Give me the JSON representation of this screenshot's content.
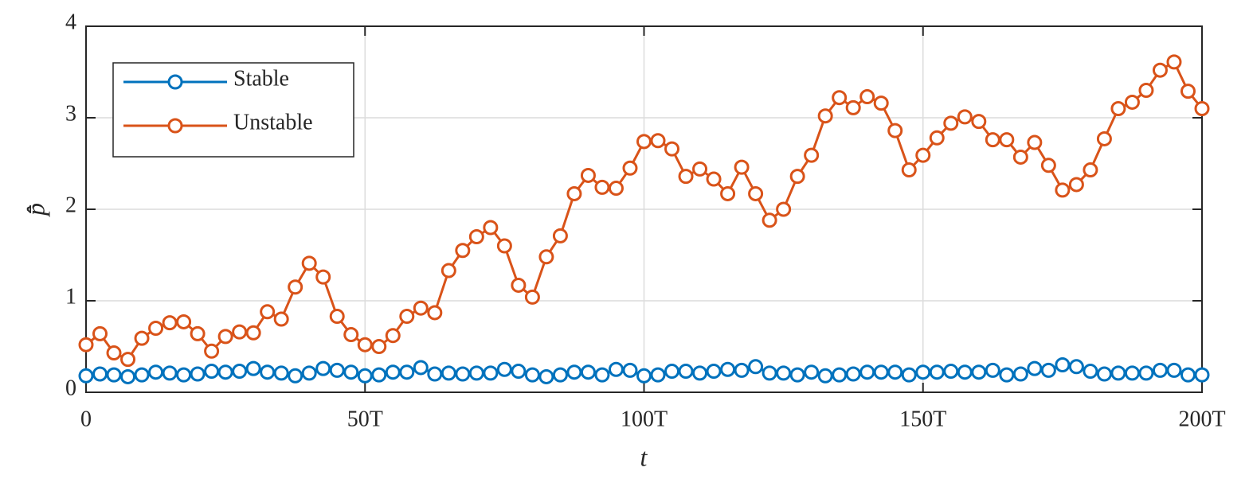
{
  "chart_data": {
    "type": "line",
    "xlabel": "t",
    "ylabel": "p̂̄",
    "x": [
      0,
      2.5,
      5,
      7.5,
      10,
      12.5,
      15,
      17.5,
      20,
      22.5,
      25,
      27.5,
      30,
      32.5,
      35,
      37.5,
      40,
      42.5,
      45,
      47.5,
      50,
      52.5,
      55,
      57.5,
      60,
      62.5,
      65,
      67.5,
      70,
      72.5,
      75,
      77.5,
      80,
      82.5,
      85,
      87.5,
      90,
      92.5,
      95,
      97.5,
      100,
      102.5,
      105,
      107.5,
      110,
      112.5,
      115,
      117.5,
      120,
      122.5,
      125,
      127.5,
      130,
      132.5,
      135,
      137.5,
      140,
      142.5,
      145,
      147.5,
      150,
      152.5,
      155,
      157.5,
      160,
      162.5,
      165,
      167.5,
      170,
      172.5,
      175,
      177.5,
      180,
      182.5,
      185,
      187.5,
      190,
      192.5,
      195,
      197.5,
      200
    ],
    "series": [
      {
        "name": "Stable",
        "color": "#0072bd",
        "values": [
          0.18,
          0.2,
          0.19,
          0.17,
          0.19,
          0.22,
          0.21,
          0.19,
          0.2,
          0.23,
          0.22,
          0.23,
          0.26,
          0.22,
          0.21,
          0.18,
          0.21,
          0.26,
          0.24,
          0.22,
          0.18,
          0.19,
          0.22,
          0.22,
          0.27,
          0.2,
          0.21,
          0.2,
          0.21,
          0.21,
          0.25,
          0.23,
          0.19,
          0.17,
          0.19,
          0.22,
          0.22,
          0.19,
          0.25,
          0.24,
          0.18,
          0.19,
          0.23,
          0.23,
          0.21,
          0.23,
          0.25,
          0.24,
          0.28,
          0.21,
          0.21,
          0.19,
          0.22,
          0.18,
          0.19,
          0.2,
          0.22,
          0.22,
          0.22,
          0.19,
          0.22,
          0.22,
          0.23,
          0.22,
          0.22,
          0.24,
          0.19,
          0.2,
          0.26,
          0.24,
          0.3,
          0.28,
          0.23,
          0.2,
          0.21,
          0.21,
          0.21,
          0.24,
          0.24,
          0.19,
          0.19
        ]
      },
      {
        "name": "Unstable",
        "color": "#d95319",
        "values": [
          0.52,
          0.64,
          0.43,
          0.36,
          0.59,
          0.7,
          0.76,
          0.77,
          0.64,
          0.45,
          0.61,
          0.66,
          0.65,
          0.88,
          0.8,
          1.15,
          1.41,
          1.26,
          0.83,
          0.63,
          0.52,
          0.5,
          0.62,
          0.83,
          0.92,
          0.87,
          1.33,
          1.55,
          1.7,
          1.8,
          1.6,
          1.17,
          1.04,
          1.48,
          1.71,
          2.17,
          2.37,
          2.24,
          2.23,
          2.45,
          2.74,
          2.75,
          2.66,
          2.36,
          2.44,
          2.33,
          2.17,
          2.46,
          2.17,
          1.88,
          2.0,
          2.36,
          2.59,
          3.02,
          3.22,
          3.11,
          3.23,
          3.16,
          2.86,
          2.43,
          2.59,
          2.78,
          2.94,
          3.01,
          2.96,
          2.76,
          2.76,
          2.57,
          2.73,
          2.48,
          2.21,
          2.27,
          2.43,
          2.77,
          3.1,
          3.17,
          3.3,
          3.52,
          3.61,
          3.29,
          3.1
        ]
      }
    ],
    "xlim": [
      0,
      200
    ],
    "xticks": [
      0,
      {
        "value": 50,
        "label": "50T"
      },
      {
        "value": 100,
        "label": "100T"
      },
      {
        "value": 150,
        "label": "150T"
      },
      {
        "value": 200,
        "label": "200T"
      }
    ],
    "ylim": [
      0,
      4
    ],
    "yticks": [
      0,
      1,
      2,
      3,
      4
    ],
    "grid": true,
    "legend": "upper left"
  }
}
